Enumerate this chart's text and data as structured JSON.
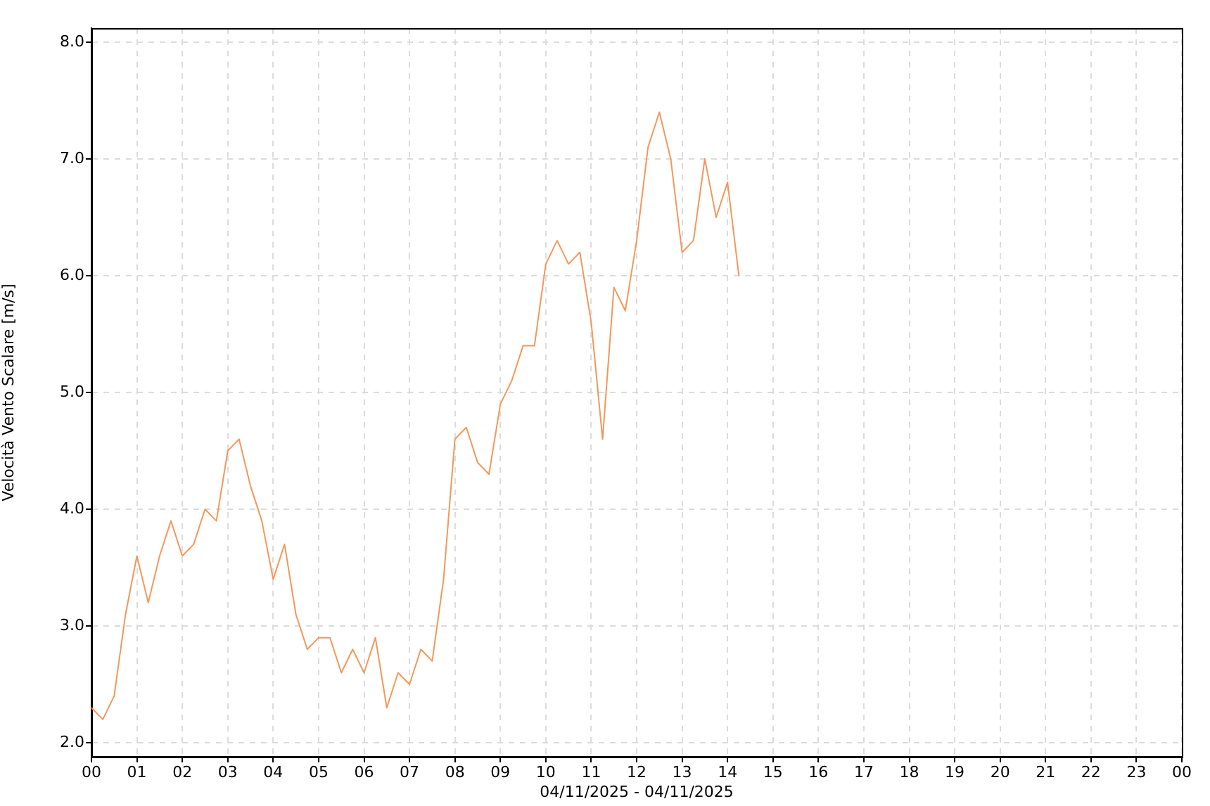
{
  "chart_data": {
    "type": "line",
    "xlabel": "04/11/2025 - 04/11/2025",
    "ylabel": "Velocità Vento Scalare [m/s]",
    "x": [
      0,
      0.25,
      0.5,
      0.75,
      1,
      1.25,
      1.5,
      1.75,
      2,
      2.25,
      2.5,
      2.75,
      3,
      3.25,
      3.5,
      3.75,
      4,
      4.25,
      4.5,
      4.75,
      5,
      5.25,
      5.5,
      5.75,
      6,
      6.25,
      6.5,
      6.75,
      7,
      7.25,
      7.5,
      7.75,
      8,
      8.25,
      8.5,
      8.75,
      9,
      9.25,
      9.5,
      9.75,
      10,
      10.25,
      10.5,
      10.75,
      11,
      11.25,
      11.5,
      11.75,
      12,
      12.25,
      12.5,
      12.75,
      13,
      13.25,
      13.5,
      13.75,
      14,
      14.25
    ],
    "series": [
      {
        "color": "#f5975a",
        "values": [
          2.3,
          2.2,
          2.4,
          3.1,
          3.6,
          3.2,
          3.6,
          3.9,
          3.6,
          3.7,
          4.0,
          3.9,
          4.5,
          4.6,
          4.2,
          3.9,
          3.4,
          3.7,
          3.1,
          2.8,
          2.9,
          2.9,
          2.6,
          2.8,
          2.6,
          2.9,
          2.3,
          2.6,
          2.5,
          2.8,
          2.7,
          3.4,
          4.6,
          4.7,
          4.4,
          4.3,
          4.9,
          5.1,
          5.4,
          5.4,
          6.1,
          6.3,
          6.1,
          6.2,
          5.6,
          4.6,
          5.9,
          5.7,
          6.3,
          7.1,
          7.4,
          7.0,
          6.2,
          6.3,
          7.0,
          6.5,
          6.8,
          6.0
        ]
      }
    ],
    "xlim": [
      0,
      24
    ],
    "xticks": [
      {
        "value": 0,
        "label": "00"
      },
      {
        "value": 1,
        "label": "01"
      },
      {
        "value": 2,
        "label": "02"
      },
      {
        "value": 3,
        "label": "03"
      },
      {
        "value": 4,
        "label": "04"
      },
      {
        "value": 5,
        "label": "05"
      },
      {
        "value": 6,
        "label": "06"
      },
      {
        "value": 7,
        "label": "07"
      },
      {
        "value": 8,
        "label": "08"
      },
      {
        "value": 9,
        "label": "09"
      },
      {
        "value": 10,
        "label": "10"
      },
      {
        "value": 11,
        "label": "11"
      },
      {
        "value": 12,
        "label": "12"
      },
      {
        "value": 13,
        "label": "13"
      },
      {
        "value": 14,
        "label": "14"
      },
      {
        "value": 15,
        "label": "15"
      },
      {
        "value": 16,
        "label": "16"
      },
      {
        "value": 17,
        "label": "17"
      },
      {
        "value": 18,
        "label": "18"
      },
      {
        "value": 19,
        "label": "19"
      },
      {
        "value": 20,
        "label": "20"
      },
      {
        "value": 21,
        "label": "21"
      },
      {
        "value": 22,
        "label": "22"
      },
      {
        "value": 23,
        "label": "23"
      },
      {
        "value": 24,
        "label": "00"
      }
    ],
    "ylim": [
      1.88,
      8.12
    ],
    "yticks": [
      {
        "value": 2,
        "label": "2.0"
      },
      {
        "value": 3,
        "label": "3.0"
      },
      {
        "value": 4,
        "label": "4.0"
      },
      {
        "value": 5,
        "label": "5.0"
      },
      {
        "value": 6,
        "label": "6.0"
      },
      {
        "value": 7,
        "label": "7.0"
      },
      {
        "value": 8,
        "label": "8.0"
      }
    ],
    "grid": true,
    "legend": false,
    "marker": "none",
    "line_style": "solid"
  }
}
